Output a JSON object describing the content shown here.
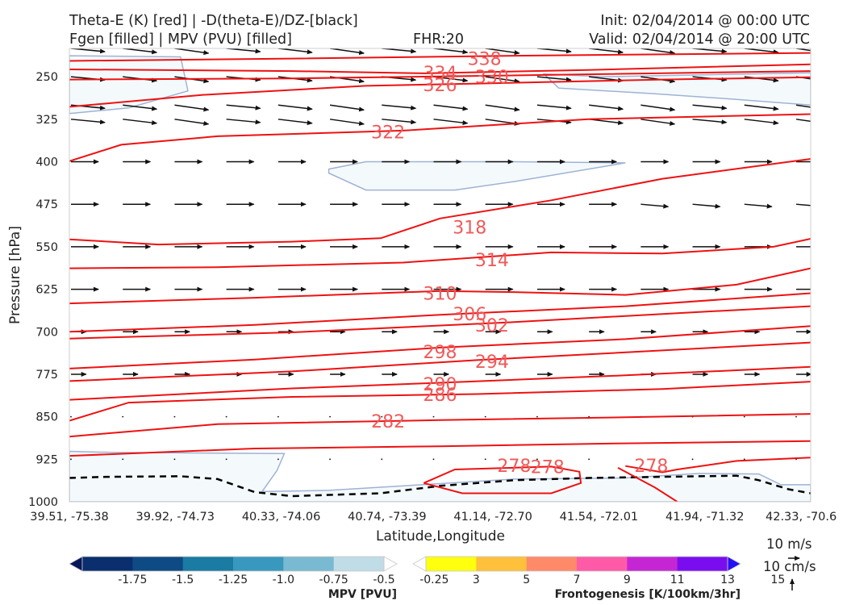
{
  "header": {
    "line1_left": "Theta-E (K) [red] | -D(theta-E)/DZ-[black]",
    "line2_left": "Fgen [filled] | MPV (PVU) [filled]",
    "fhr": "FHR:20",
    "init": "Init: 02/04/2014 @ 00:00 UTC",
    "valid": "Valid: 02/04/2014 @ 20:00 UTC"
  },
  "chart_data": {
    "type": "cross-section",
    "xlabel": "Latitude,Longitude",
    "ylabel": "Pressure [hPa]",
    "x_ticks": [
      "39.51, -75.38",
      "39.92, -74.73",
      "40.33, -74.06",
      "40.74, -73.39",
      "41.14, -72.70",
      "41.54, -72.01",
      "41.94, -71.32",
      "42.33, -70.6"
    ],
    "y_ticks": [
      250,
      325,
      400,
      475,
      550,
      625,
      700,
      775,
      850,
      925,
      1000
    ],
    "ylim": [
      1000,
      200
    ],
    "theta_e_contours": [
      {
        "label": "338",
        "points": [
          [
            0,
            222
          ],
          [
            0.3,
            218
          ],
          [
            0.6,
            213
          ],
          [
            1,
            208
          ]
        ]
      },
      {
        "label": "334",
        "points": [
          [
            0,
            237
          ],
          [
            0.3,
            240
          ],
          [
            0.48,
            244
          ],
          [
            0.7,
            238
          ],
          [
            1,
            228
          ]
        ]
      },
      {
        "label": "330",
        "points": [
          [
            0,
            255
          ],
          [
            0.3,
            253
          ],
          [
            0.58,
            248
          ],
          [
            1,
            240
          ]
        ]
      },
      {
        "label": "326",
        "points": [
          [
            0,
            303
          ],
          [
            0.18,
            282
          ],
          [
            0.4,
            266
          ],
          [
            0.55,
            262
          ],
          [
            0.8,
            255
          ],
          [
            1,
            251
          ]
        ]
      },
      {
        "label": "322",
        "points": [
          [
            0,
            399
          ],
          [
            0.07,
            370
          ],
          [
            0.2,
            355
          ],
          [
            0.45,
            345
          ],
          [
            0.7,
            325
          ],
          [
            1,
            316
          ]
        ]
      },
      {
        "label": "318",
        "points": [
          [
            0,
            537
          ],
          [
            0.12,
            546
          ],
          [
            0.3,
            541
          ],
          [
            0.42,
            535
          ],
          [
            0.5,
            500
          ],
          [
            0.65,
            468
          ],
          [
            0.8,
            430
          ],
          [
            1,
            395
          ]
        ]
      },
      {
        "label": "314",
        "points": [
          [
            0,
            588
          ],
          [
            0.2,
            586
          ],
          [
            0.45,
            578
          ],
          [
            0.65,
            560
          ],
          [
            0.8,
            562
          ],
          [
            0.95,
            550
          ],
          [
            1,
            536
          ]
        ]
      },
      {
        "label": "310",
        "points": [
          [
            0,
            650
          ],
          [
            0.25,
            640
          ],
          [
            0.5,
            628
          ],
          [
            0.6,
            630
          ],
          [
            0.75,
            635
          ],
          [
            0.9,
            617
          ],
          [
            1,
            588
          ]
        ]
      },
      {
        "label": "306",
        "points": [
          [
            0,
            700
          ],
          [
            0.25,
            688
          ],
          [
            0.5,
            670
          ],
          [
            0.75,
            655
          ],
          [
            1,
            632
          ]
        ]
      },
      {
        "label": "302",
        "points": [
          [
            0,
            712
          ],
          [
            0.3,
            701
          ],
          [
            0.6,
            683
          ],
          [
            0.85,
            665
          ],
          [
            1,
            655
          ]
        ]
      },
      {
        "label": "298",
        "points": [
          [
            0,
            765
          ],
          [
            0.25,
            749
          ],
          [
            0.5,
            728
          ],
          [
            0.75,
            713
          ],
          [
            1,
            690
          ]
        ]
      },
      {
        "label": "294",
        "points": [
          [
            0,
            787
          ],
          [
            0.3,
            770
          ],
          [
            0.55,
            750
          ],
          [
            0.8,
            733
          ],
          [
            1,
            719
          ]
        ]
      },
      {
        "label": "290",
        "points": [
          [
            0,
            820
          ],
          [
            0.3,
            800
          ],
          [
            0.5,
            790
          ],
          [
            0.75,
            777
          ],
          [
            1,
            762
          ]
        ]
      },
      {
        "label": "286",
        "points": [
          [
            0,
            857
          ],
          [
            0.08,
            825
          ],
          [
            0.3,
            815
          ],
          [
            0.55,
            810
          ],
          [
            0.8,
            801
          ],
          [
            1,
            788
          ]
        ]
      },
      {
        "label": "282",
        "points": [
          [
            0,
            885
          ],
          [
            0.2,
            863
          ],
          [
            0.5,
            856
          ],
          [
            0.75,
            851
          ],
          [
            1,
            845
          ]
        ]
      },
      {
        "label": "278",
        "points": [
          [
            0,
            919
          ],
          [
            0.25,
            906
          ],
          [
            0.5,
            902
          ],
          [
            0.75,
            897
          ],
          [
            1,
            893
          ]
        ]
      }
    ],
    "theta_e_closed": [
      {
        "label": "278",
        "points": [
          [
            0.478,
            967
          ],
          [
            0.52,
            943
          ],
          [
            0.65,
            938
          ],
          [
            0.688,
            947
          ],
          [
            0.69,
            967
          ],
          [
            0.65,
            985
          ],
          [
            0.53,
            985
          ],
          [
            0.478,
            967
          ]
        ]
      },
      {
        "label": "278",
        "points": [
          [
            0.75,
            937
          ],
          [
            0.8,
            948
          ],
          [
            0.82,
            943
          ],
          [
            0.9,
            928
          ],
          [
            1,
            922
          ]
        ]
      },
      {
        "label": "",
        "points": [
          [
            0.74,
            940
          ],
          [
            0.79,
            975
          ],
          [
            0.82,
            1000
          ]
        ]
      }
    ],
    "mpv_filled": [
      {
        "points": [
          [
            0,
            213
          ],
          [
            0.15,
            215
          ],
          [
            0.16,
            275
          ],
          [
            0.08,
            305
          ],
          [
            0,
            315
          ]
        ]
      },
      {
        "points": [
          [
            0.64,
            245
          ],
          [
            0.72,
            250
          ],
          [
            0.8,
            248
          ],
          [
            1,
            243
          ],
          [
            1,
            300
          ],
          [
            0.9,
            290
          ],
          [
            0.79,
            280
          ],
          [
            0.66,
            270
          ]
        ]
      },
      {
        "points": [
          [
            0.35,
            413
          ],
          [
            0.4,
            400
          ],
          [
            0.6,
            400
          ],
          [
            0.75,
            402
          ],
          [
            0.6,
            435
          ],
          [
            0.52,
            450
          ],
          [
            0.4,
            450
          ],
          [
            0.35,
            420
          ]
        ]
      },
      {
        "points": [
          [
            0,
            911
          ],
          [
            0.06,
            913
          ],
          [
            0.29,
            915
          ],
          [
            0.28,
            945
          ],
          [
            0.26,
            982
          ],
          [
            0.35,
            980
          ],
          [
            0.5,
            968
          ],
          [
            0.6,
            960
          ],
          [
            0.75,
            958
          ],
          [
            0.85,
            950
          ],
          [
            0.93,
            951
          ],
          [
            0.96,
            970
          ],
          [
            1,
            970
          ],
          [
            1,
            1000
          ],
          [
            0,
            1000
          ]
        ]
      }
    ],
    "dthetae_dashed": [
      [
        0,
        958
      ],
      [
        0.05,
        956
      ],
      [
        0.15,
        955
      ],
      [
        0.2,
        960
      ],
      [
        0.25,
        983
      ],
      [
        0.3,
        990
      ],
      [
        0.42,
        985
      ],
      [
        0.5,
        972
      ],
      [
        0.6,
        962
      ],
      [
        0.7,
        958
      ],
      [
        0.8,
        956
      ],
      [
        0.9,
        954
      ],
      [
        0.93,
        962
      ],
      [
        0.97,
        978
      ],
      [
        1,
        985
      ]
    ],
    "wind_vectors": {
      "cols": 15,
      "rows_pressure": [
        200,
        250,
        300,
        325,
        400,
        475,
        550,
        625,
        700,
        775,
        850,
        925
      ],
      "description": "circulation vectors, mostly eastward, weakening toward surface"
    },
    "mpv_colorbar": {
      "label": "MPV [PVU]",
      "ticks": [
        "-1.75",
        "-1.5",
        "-1.25",
        "-1.0",
        "-0.75",
        "-0.5",
        "-0.25"
      ],
      "colors": [
        "#08175a",
        "#0a2e6e",
        "#0e4a84",
        "#1a7ba3",
        "#3998be",
        "#7ab9d2",
        "#bfdce7",
        "#ffffff"
      ]
    },
    "fgen_colorbar": {
      "label": "Frontogenesis [K/100km/3hr]",
      "ticks": [
        "3",
        "5",
        "7",
        "9",
        "11",
        "13",
        "15"
      ],
      "colors": [
        "#ffffff",
        "#ffff0e",
        "#ffc03c",
        "#ff8a6a",
        "#ff5aa8",
        "#c526d3",
        "#7a0df0",
        "#2610f5"
      ]
    },
    "vector_key": {
      "horizontal": "10 m/s",
      "vertical": "10 cm/s"
    }
  }
}
